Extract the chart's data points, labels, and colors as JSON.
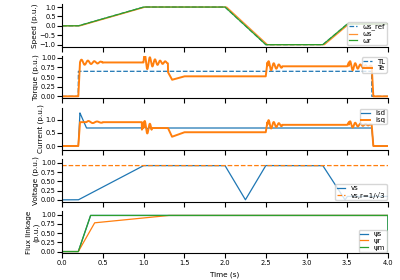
{
  "xlabel": "Time (s)",
  "panel_labels": [
    "Speed (p.u.)",
    "Torque (p.u.)",
    "Current (p.u.)",
    "Voltage (p.u.)",
    "Flux linkage\n(p.u.)"
  ],
  "colors": {
    "blue": "#1f77b4",
    "orange": "#ff7f0e",
    "green": "#2ca02c"
  },
  "legend_speed": [
    {
      "label": "ωs_ref",
      "color": "#1f77b4",
      "ls": "--"
    },
    {
      "label": "ωs",
      "color": "#ff7f0e",
      "ls": "-"
    },
    {
      "label": "ωr",
      "color": "#2ca02c",
      "ls": "-"
    }
  ],
  "legend_torque": [
    {
      "label": "TL",
      "color": "#1f77b4",
      "ls": "--"
    },
    {
      "label": "Te",
      "color": "#ff7f0e",
      "ls": "-"
    }
  ],
  "legend_current": [
    {
      "label": "isd",
      "color": "#1f77b4",
      "ls": "-"
    },
    {
      "label": "isq",
      "color": "#ff7f0e",
      "ls": "-"
    }
  ],
  "legend_voltage": [
    {
      "label": "vs",
      "color": "#1f77b4",
      "ls": "-"
    },
    {
      "label": "vs,r=1/√3",
      "color": "#ff7f0e",
      "ls": "--"
    }
  ],
  "legend_flux": [
    {
      "label": "ψs",
      "color": "#1f77b4",
      "ls": "-"
    },
    {
      "label": "ψr",
      "color": "#ff7f0e",
      "ls": "-"
    },
    {
      "label": "ψm",
      "color": "#2ca02c",
      "ls": "-"
    }
  ],
  "TL_level": 0.65,
  "vs_rated": 0.93
}
